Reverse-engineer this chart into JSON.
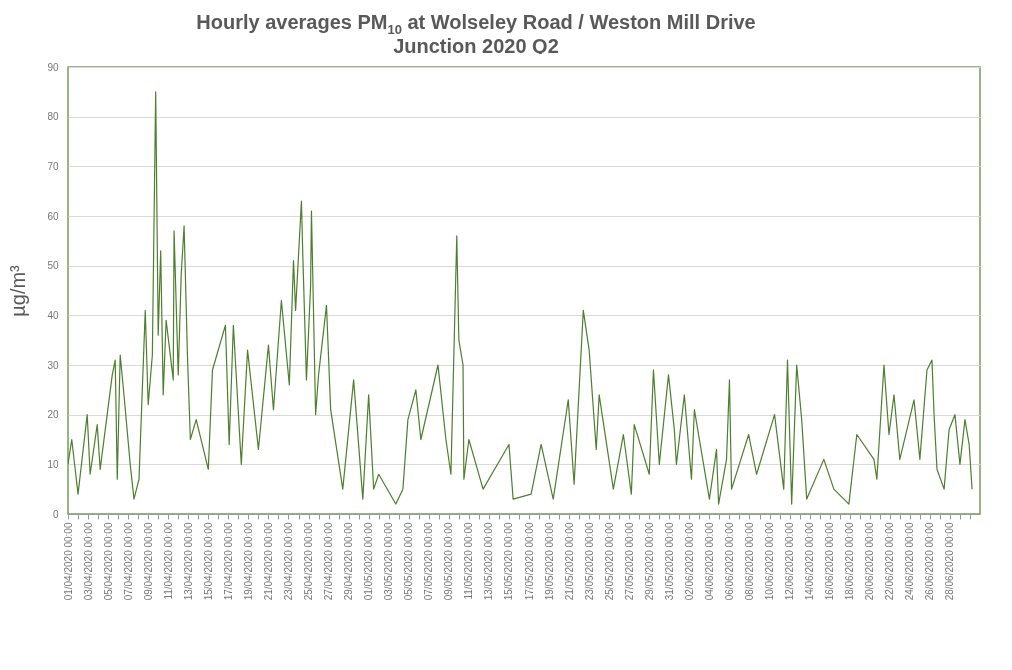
{
  "chart_data": {
    "type": "line",
    "title": "Hourly averages PM$_{10}$ at Wolseley Road / Weston Mill Drive Junction 2020 Q2",
    "ylabel": "µg/m³",
    "grid": "y",
    "xlim": [
      "2020-04-01T00:00",
      "2020-07-01T00:00"
    ],
    "ylim": [
      0,
      90
    ],
    "yticks": [
      0,
      10,
      20,
      30,
      40,
      50,
      60,
      70,
      80,
      90
    ],
    "xticks": [
      {
        "value": "2020-04-01T00:00",
        "label": "01/04/2020 00:00"
      },
      {
        "value": "2020-04-02T00:00",
        "label": null
      },
      {
        "value": "2020-04-03T00:00",
        "label": "03/04/2020 00:00"
      },
      {
        "value": "2020-04-04T00:00",
        "label": null
      },
      {
        "value": "2020-04-05T00:00",
        "label": "05/04/2020 00:00"
      },
      {
        "value": "2020-04-06T00:00",
        "label": null
      },
      {
        "value": "2020-04-07T00:00",
        "label": "07/04/2020 00:00"
      },
      {
        "value": "2020-04-08T00:00",
        "label": null
      },
      {
        "value": "2020-04-09T00:00",
        "label": "09/04/2020 00:00"
      },
      {
        "value": "2020-04-10T00:00",
        "label": null
      },
      {
        "value": "2020-04-11T00:00",
        "label": "11/04/2020 00:00"
      },
      {
        "value": "2020-04-12T00:00",
        "label": null
      },
      {
        "value": "2020-04-13T00:00",
        "label": "13/04/2020 00:00"
      },
      {
        "value": "2020-04-14T00:00",
        "label": null
      },
      {
        "value": "2020-04-15T00:00",
        "label": "15/04/2020 00:00"
      },
      {
        "value": "2020-04-16T00:00",
        "label": null
      },
      {
        "value": "2020-04-17T00:00",
        "label": "17/04/2020 00:00"
      },
      {
        "value": "2020-04-18T00:00",
        "label": null
      },
      {
        "value": "2020-04-19T00:00",
        "label": "19/04/2020 00:00"
      },
      {
        "value": "2020-04-20T00:00",
        "label": null
      },
      {
        "value": "2020-04-21T00:00",
        "label": "21/04/2020 00:00"
      },
      {
        "value": "2020-04-22T00:00",
        "label": null
      },
      {
        "value": "2020-04-23T00:00",
        "label": "23/04/2020 00:00"
      },
      {
        "value": "2020-04-24T00:00",
        "label": null
      },
      {
        "value": "2020-04-25T00:00",
        "label": "25/04/2020 00:00"
      },
      {
        "value": "2020-04-26T00:00",
        "label": null
      },
      {
        "value": "2020-04-27T00:00",
        "label": "27/04/2020 00:00"
      },
      {
        "value": "2020-04-28T00:00",
        "label": null
      },
      {
        "value": "2020-04-29T00:00",
        "label": "29/04/2020 00:00"
      },
      {
        "value": "2020-04-30T00:00",
        "label": null
      },
      {
        "value": "2020-05-01T00:00",
        "label": "01/05/2020 00:00"
      },
      {
        "value": "2020-05-02T00:00",
        "label": null
      },
      {
        "value": "2020-05-03T00:00",
        "label": "03/05/2020 00:00"
      },
      {
        "value": "2020-05-04T00:00",
        "label": null
      },
      {
        "value": "2020-05-05T00:00",
        "label": "05/05/2020 00:00"
      },
      {
        "value": "2020-05-06T00:00",
        "label": null
      },
      {
        "value": "2020-05-07T00:00",
        "label": "07/05/2020 00:00"
      },
      {
        "value": "2020-05-08T00:00",
        "label": null
      },
      {
        "value": "2020-05-09T00:00",
        "label": "09/05/2020 00:00"
      },
      {
        "value": "2020-05-10T00:00",
        "label": null
      },
      {
        "value": "2020-05-11T00:00",
        "label": "11/05/2020 00:00"
      },
      {
        "value": "2020-05-12T00:00",
        "label": null
      },
      {
        "value": "2020-05-13T00:00",
        "label": "13/05/2020 00:00"
      },
      {
        "value": "2020-05-14T00:00",
        "label": null
      },
      {
        "value": "2020-05-15T00:00",
        "label": "15/05/2020 00:00"
      },
      {
        "value": "2020-05-16T00:00",
        "label": null
      },
      {
        "value": "2020-05-17T00:00",
        "label": "17/05/2020 00:00"
      },
      {
        "value": "2020-05-18T00:00",
        "label": null
      },
      {
        "value": "2020-05-19T00:00",
        "label": "19/05/2020 00:00"
      },
      {
        "value": "2020-05-20T00:00",
        "label": null
      },
      {
        "value": "2020-05-21T00:00",
        "label": "21/05/2020 00:00"
      },
      {
        "value": "2020-05-22T00:00",
        "label": null
      },
      {
        "value": "2020-05-23T00:00",
        "label": "23/05/2020 00:00"
      },
      {
        "value": "2020-05-24T00:00",
        "label": null
      },
      {
        "value": "2020-05-25T00:00",
        "label": "25/05/2020 00:00"
      },
      {
        "value": "2020-05-26T00:00",
        "label": null
      },
      {
        "value": "2020-05-27T00:00",
        "label": "27/05/2020 00:00"
      },
      {
        "value": "2020-05-28T00:00",
        "label": null
      },
      {
        "value": "2020-05-29T00:00",
        "label": "29/05/2020 00:00"
      },
      {
        "value": "2020-05-30T00:00",
        "label": null
      },
      {
        "value": "2020-05-31T00:00",
        "label": "31/05/2020 00:00"
      },
      {
        "value": "2020-06-01T00:00",
        "label": null
      },
      {
        "value": "2020-06-02T00:00",
        "label": "02/06/2020 00:00"
      },
      {
        "value": "2020-06-03T00:00",
        "label": null
      },
      {
        "value": "2020-06-04T00:00",
        "label": "04/06/2020 00:00"
      },
      {
        "value": "2020-06-05T00:00",
        "label": null
      },
      {
        "value": "2020-06-06T00:00",
        "label": "06/06/2020 00:00"
      },
      {
        "value": "2020-06-07T00:00",
        "label": null
      },
      {
        "value": "2020-06-08T00:00",
        "label": "08/06/2020 00:00"
      },
      {
        "value": "2020-06-09T00:00",
        "label": null
      },
      {
        "value": "2020-06-10T00:00",
        "label": "10/06/2020 00:00"
      },
      {
        "value": "2020-06-11T00:00",
        "label": null
      },
      {
        "value": "2020-06-12T00:00",
        "label": "12/06/2020 00:00"
      },
      {
        "value": "2020-06-13T00:00",
        "label": null
      },
      {
        "value": "2020-06-14T00:00",
        "label": "14/06/2020 00:00"
      },
      {
        "value": "2020-06-15T00:00",
        "label": null
      },
      {
        "value": "2020-06-16T00:00",
        "label": "16/06/2020 00:00"
      },
      {
        "value": "2020-06-17T00:00",
        "label": null
      },
      {
        "value": "2020-06-18T00:00",
        "label": "18/06/2020 00:00"
      },
      {
        "value": "2020-06-19T00:00",
        "label": null
      },
      {
        "value": "2020-06-20T00:00",
        "label": "20/06/2020 00:00"
      },
      {
        "value": "2020-06-21T00:00",
        "label": null
      },
      {
        "value": "2020-06-22T00:00",
        "label": "22/06/2020 00:00"
      },
      {
        "value": "2020-06-23T00:00",
        "label": null
      },
      {
        "value": "2020-06-24T00:00",
        "label": "24/06/2020 00:00"
      },
      {
        "value": "2020-06-25T00:00",
        "label": null
      },
      {
        "value": "2020-06-26T00:00",
        "label": "26/06/2020 00:00"
      },
      {
        "value": "2020-06-27T00:00",
        "label": null
      },
      {
        "value": "2020-06-28T00:00",
        "label": "28/06/2020 00:00"
      },
      {
        "value": "2020-06-29T00:00",
        "label": null
      },
      {
        "value": "2020-06-30T00:00",
        "label": null
      }
    ],
    "series": [
      {
        "color": "#4e7f2e",
        "x": [
          "2020-04-01T00:00",
          "2020-04-01T09:00",
          "2020-04-02T00:00",
          "2020-04-02T22:00",
          "2020-04-03T05:00",
          "2020-04-03T22:00",
          "2020-04-04T05:00",
          "2020-04-05T10:00",
          "2020-04-05T17:00",
          "2020-04-05T22:00",
          "2020-04-06T05:00",
          "2020-04-06T14:00",
          "2020-04-07T05:00",
          "2020-04-07T14:00",
          "2020-04-08T02:00",
          "2020-04-08T17:00",
          "2020-04-09T00:00",
          "2020-04-09T10:00",
          "2020-04-09T18:00",
          "2020-04-10T00:00",
          "2020-04-10T06:00",
          "2020-04-10T12:00",
          "2020-04-10T19:00",
          "2020-04-11T12:00",
          "2020-04-11T14:00",
          "2020-04-12T00:00",
          "2020-04-12T07:00",
          "2020-04-12T14:00",
          "2020-04-12T22:00",
          "2020-04-13T05:00",
          "2020-04-13T19:00",
          "2020-04-15T00:00",
          "2020-04-15T10:00",
          "2020-04-16T17:00",
          "2020-04-17T02:00",
          "2020-04-17T12:00",
          "2020-04-18T07:00",
          "2020-04-18T22:00",
          "2020-04-20T00:00",
          "2020-04-21T00:00",
          "2020-04-21T12:00",
          "2020-04-22T07:00",
          "2020-04-23T02:00",
          "2020-04-23T12:00",
          "2020-04-23T17:00",
          "2020-04-24T07:00",
          "2020-04-24T10:00",
          "2020-04-24T19:00",
          "2020-04-25T05:00",
          "2020-04-25T07:00",
          "2020-04-25T17:00",
          "2020-04-26T00:00",
          "2020-04-26T19:00",
          "2020-04-27T05:00",
          "2020-04-28T10:00",
          "2020-04-29T12:00",
          "2020-04-30T10:00",
          "2020-05-01T00:00",
          "2020-05-01T12:00",
          "2020-05-02T00:00",
          "2020-05-03T17:00",
          "2020-05-04T10:00",
          "2020-05-04T22:00",
          "2020-05-05T17:00",
          "2020-05-06T05:00",
          "2020-05-07T22:00",
          "2020-05-08T17:00",
          "2020-05-09T05:00",
          "2020-05-09T19:00",
          "2020-05-10T00:00",
          "2020-05-10T10:00",
          "2020-05-10T12:00",
          "2020-05-11T00:00",
          "2020-05-12T10:00",
          "2020-05-15T00:00",
          "2020-05-15T10:00",
          "2020-05-17T05:00",
          "2020-05-18T05:00",
          "2020-05-19T10:00",
          "2020-05-20T22:00",
          "2020-05-21T12:00",
          "2020-05-22T10:00",
          "2020-05-23T00:00",
          "2020-05-23T17:00",
          "2020-05-24T00:00",
          "2020-05-25T10:00",
          "2020-05-26T10:00",
          "2020-05-27T05:00",
          "2020-05-27T12:00",
          "2020-05-29T00:00",
          "2020-05-29T10:00",
          "2020-05-30T00:00",
          "2020-05-30T22:00",
          "2020-05-31T12:00",
          "2020-05-31T17:00",
          "2020-06-01T12:00",
          "2020-06-02T05:00",
          "2020-06-02T12:00",
          "2020-06-04T00:00",
          "2020-06-04T17:00",
          "2020-06-04T22:00",
          "2020-06-05T17:00",
          "2020-06-06T00:00",
          "2020-06-06T05:00",
          "2020-06-07T22:00",
          "2020-06-08T17:00",
          "2020-06-10T12:00",
          "2020-06-11T10:00",
          "2020-06-11T19:00",
          "2020-06-12T05:00",
          "2020-06-12T17:00",
          "2020-06-13T05:00",
          "2020-06-13T17:00",
          "2020-06-15T10:00",
          "2020-06-16T10:00",
          "2020-06-17T22:00",
          "2020-06-18T17:00",
          "2020-06-20T10:00",
          "2020-06-20T17:00",
          "2020-06-21T10:00",
          "2020-06-21T22:00",
          "2020-06-22T10:00",
          "2020-06-23T00:00",
          "2020-06-24T10:00",
          "2020-06-25T00:00",
          "2020-06-25T17:00",
          "2020-06-26T05:00",
          "2020-06-26T10:00",
          "2020-06-26T17:00",
          "2020-06-27T10:00",
          "2020-06-27T22:00",
          "2020-06-28T12:00",
          "2020-06-29T00:00",
          "2020-06-29T12:00",
          "2020-06-29T22:00",
          "2020-06-30T05:00"
        ],
        "values": [
          10,
          15,
          4,
          20,
          8,
          18,
          9,
          28,
          31,
          7,
          32,
          24,
          10,
          3,
          7,
          41,
          22,
          32,
          85,
          36,
          53,
          24,
          39,
          27,
          57,
          28,
          48,
          58,
          32,
          15,
          19,
          9,
          29,
          38,
          14,
          38,
          10,
          33,
          13,
          34,
          21,
          43,
          26,
          51,
          41,
          63,
          53,
          27,
          46,
          61,
          20,
          28,
          42,
          21,
          5,
          27,
          3,
          24,
          5,
          8,
          2,
          5,
          19,
          25,
          15,
          30,
          15,
          8,
          56,
          35,
          30,
          7,
          15,
          5,
          14,
          3,
          4,
          14,
          3,
          23,
          6,
          41,
          33,
          13,
          24,
          5,
          16,
          4,
          18,
          8,
          29,
          10,
          28,
          17,
          10,
          24,
          7,
          21,
          3,
          13,
          2,
          11,
          27,
          5,
          16,
          8,
          20,
          5,
          31,
          2,
          30,
          19,
          3,
          11,
          5,
          2,
          16,
          11,
          7,
          30,
          16,
          24,
          11,
          23,
          11,
          29,
          31,
          20,
          9,
          5,
          17,
          20,
          10,
          19,
          14,
          5
        ]
      }
    ]
  }
}
